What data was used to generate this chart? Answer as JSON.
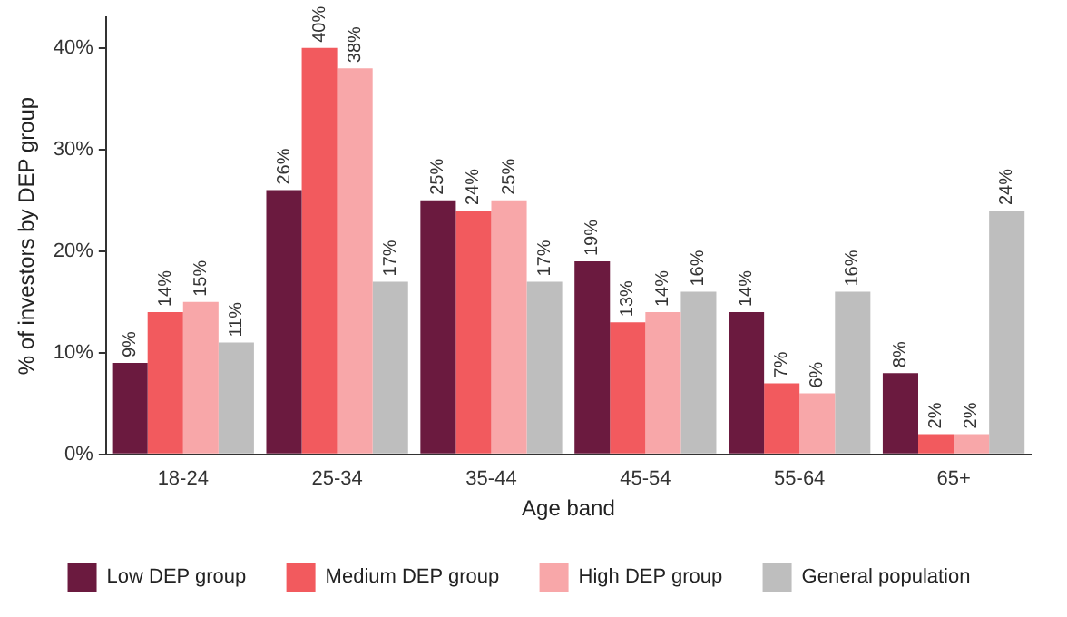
{
  "chart_data": {
    "type": "bar",
    "xlabel": "Age band",
    "ylabel": "% of investors by DEP group",
    "categories": [
      "18-24",
      "25-34",
      "35-44",
      "45-54",
      "55-64",
      "65+"
    ],
    "series": [
      {
        "name": "Low DEP group",
        "color": "#6b1a3f",
        "values": [
          9,
          26,
          25,
          19,
          14,
          8
        ],
        "value_labels": [
          "9%",
          "26%",
          "25%",
          "19%",
          "14%",
          "8%"
        ]
      },
      {
        "name": "Medium DEP group",
        "color": "#f25a5e",
        "values": [
          14,
          40,
          24,
          13,
          7,
          2
        ],
        "value_labels": [
          "14%",
          "40%",
          "24%",
          "13%",
          "7%",
          "2%"
        ]
      },
      {
        "name": "High DEP group",
        "color": "#f8a7a9",
        "values": [
          15,
          38,
          25,
          14,
          6,
          2
        ],
        "value_labels": [
          "15%",
          "38%",
          "25%",
          "14%",
          "6%",
          "2%"
        ]
      },
      {
        "name": "General population",
        "color": "#bebebe",
        "values": [
          11,
          17,
          17,
          16,
          16,
          24
        ],
        "value_labels": [
          "11%",
          "17%",
          "17%",
          "16%",
          "16%",
          "24%"
        ]
      }
    ],
    "ylim": [
      0,
      43
    ],
    "yticks": [
      {
        "value": 0,
        "label": "0%"
      },
      {
        "value": 10,
        "label": "10%"
      },
      {
        "value": 20,
        "label": "20%"
      },
      {
        "value": 30,
        "label": "30%"
      },
      {
        "value": 40,
        "label": "40%"
      }
    ],
    "grid": false,
    "legend": "bottom"
  }
}
